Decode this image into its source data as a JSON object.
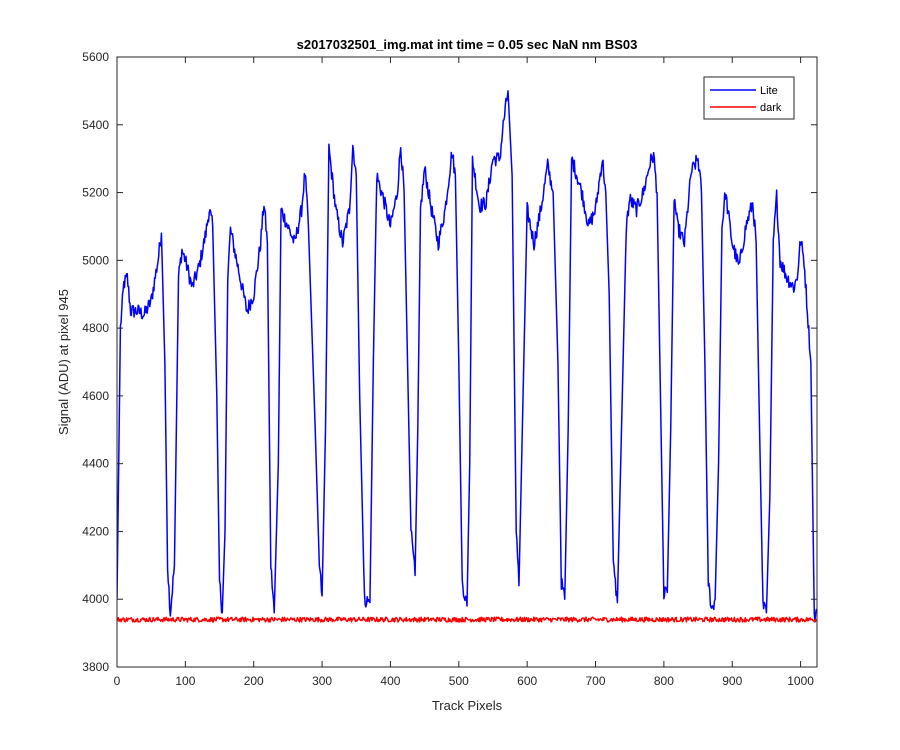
{
  "chart_data": {
    "type": "line",
    "title": "s2017032501_img.mat int time = 0.05 sec  NaN nm BS03",
    "xlabel": "Track Pixels",
    "ylabel": "Signal (ADU) at pixel 945",
    "xlim": [
      0,
      1024
    ],
    "ylim": [
      3800,
      5600
    ],
    "xticks": [
      0,
      100,
      200,
      300,
      400,
      500,
      600,
      700,
      800,
      900,
      1000
    ],
    "yticks": [
      3800,
      4000,
      4200,
      4400,
      4600,
      4800,
      5000,
      5200,
      5400,
      5600
    ],
    "grid": false,
    "legend": "top-right",
    "series": [
      {
        "name": "Lite",
        "color": "#0000ff",
        "x": [
          0,
          5,
          10,
          15,
          20,
          30,
          40,
          50,
          60,
          65,
          70,
          74,
          78,
          84,
          90,
          95,
          100,
          110,
          120,
          130,
          135,
          140,
          146,
          150,
          154,
          158,
          162,
          166,
          170,
          180,
          190,
          200,
          210,
          215,
          220,
          225,
          230,
          236,
          240,
          250,
          260,
          270,
          275,
          280,
          290,
          296,
          300,
          305,
          310,
          320,
          330,
          340,
          345,
          350,
          355,
          362,
          370,
          375,
          380,
          390,
          400,
          410,
          415,
          420,
          430,
          436,
          440,
          444,
          450,
          460,
          470,
          480,
          490,
          495,
          500,
          505,
          512,
          516,
          520,
          530,
          540,
          550,
          560,
          565,
          572,
          578,
          584,
          588,
          594,
          600,
          610,
          620,
          630,
          638,
          645,
          650,
          655,
          660,
          665,
          670,
          680,
          690,
          700,
          710,
          715,
          720,
          726,
          732,
          738,
          745,
          750,
          760,
          770,
          780,
          785,
          790,
          795,
          800,
          805,
          810,
          815,
          820,
          830,
          840,
          850,
          855,
          860,
          865,
          870,
          875,
          880,
          885,
          890,
          900,
          910,
          920,
          930,
          935,
          940,
          945,
          950,
          955,
          960,
          965,
          970,
          980,
          990,
          995,
          1000,
          1005,
          1010,
          1015,
          1020,
          1024
        ],
        "y": [
          4000,
          4800,
          4930,
          4950,
          4850,
          4850,
          4840,
          4880,
          5000,
          5080,
          4700,
          4100,
          3960,
          4100,
          4950,
          5030,
          5000,
          4920,
          4980,
          5080,
          5150,
          5100,
          4600,
          4050,
          3960,
          4200,
          4950,
          5090,
          5050,
          4950,
          4850,
          4900,
          5050,
          5170,
          5050,
          4100,
          3960,
          4400,
          5150,
          5100,
          5050,
          5150,
          5260,
          5100,
          4500,
          4100,
          4010,
          4500,
          5330,
          5150,
          5050,
          5150,
          5340,
          5250,
          4600,
          4000,
          3990,
          4700,
          5250,
          5180,
          5100,
          5200,
          5340,
          5200,
          4200,
          4070,
          4500,
          5150,
          5270,
          5150,
          5050,
          5150,
          5320,
          5250,
          4700,
          4050,
          3980,
          4400,
          5300,
          5160,
          5170,
          5300,
          5300,
          5400,
          5500,
          5250,
          4200,
          4040,
          4600,
          5150,
          5050,
          5150,
          5280,
          5200,
          4700,
          4050,
          4000,
          4500,
          5300,
          5270,
          5200,
          5100,
          5150,
          5300,
          5200,
          4900,
          4100,
          3990,
          4500,
          5100,
          5180,
          5150,
          5200,
          5290,
          5310,
          5200,
          4600,
          4010,
          4020,
          4500,
          5190,
          5100,
          5050,
          5260,
          5300,
          5200,
          4700,
          4050,
          3970,
          4000,
          4400,
          5100,
          5200,
          5050,
          4980,
          5100,
          5170,
          5050,
          4500,
          3980,
          3960,
          4300,
          5050,
          5190,
          5000,
          4950,
          4920,
          4950,
          5060,
          5000,
          4850,
          4700,
          3950,
          3960
        ]
      },
      {
        "name": "dark",
        "color": "#ff0000",
        "x": [
          0,
          1024
        ],
        "y": [
          3940,
          3940
        ]
      }
    ]
  }
}
